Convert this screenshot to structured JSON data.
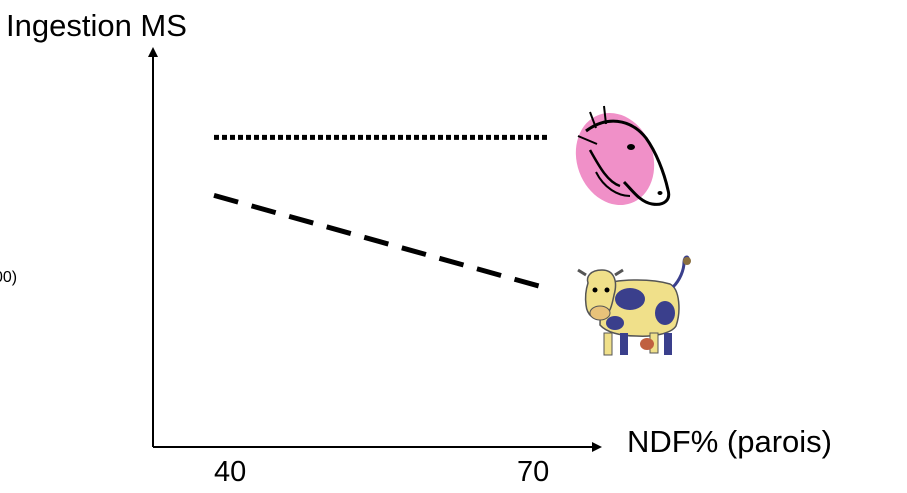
{
  "chart_data": {
    "type": "line",
    "ylabel": "Ingestion MS",
    "xlabel": "NDF% (parois)",
    "x_ticks": [
      40,
      70
    ],
    "x_range": [
      40,
      70
    ],
    "series": [
      {
        "icon": "horse-icon",
        "style": "dotted",
        "x": [
          40,
          70
        ],
        "y": [
          0.8,
          0.8
        ]
      },
      {
        "icon": "cow-icon",
        "style": "dashed",
        "x": [
          40,
          70
        ],
        "y": [
          0.65,
          0.41
        ]
      }
    ],
    "side_text": "00)",
    "colors": {
      "horse": "#f090c8",
      "cow_body": "#f0e08a",
      "cow_spots": "#3a3f8c",
      "axis": "#000000"
    }
  }
}
